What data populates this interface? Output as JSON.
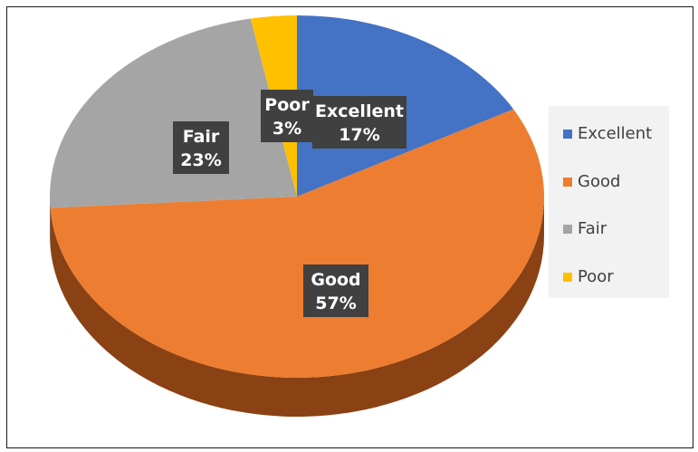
{
  "chart_data": {
    "type": "pie",
    "title": "",
    "style": "3d",
    "legend_position": "right",
    "slices": [
      {
        "label": "Excellent",
        "value": 17,
        "percent_label": "17%",
        "color": "#4472c4",
        "side_color": "#2f528f"
      },
      {
        "label": "Good",
        "value": 57,
        "percent_label": "57%",
        "color": "#ed7d31",
        "side_color": "#8a4214"
      },
      {
        "label": "Fair",
        "value": 23,
        "percent_label": "23%",
        "color": "#a5a5a5",
        "side_color": "#6e6e6e"
      },
      {
        "label": "Poor",
        "value": 3,
        "percent_label": "3%",
        "color": "#ffc000",
        "side_color": "#b38600"
      }
    ],
    "data_label_style": {
      "background": "#404040",
      "text_color": "#ffffff"
    }
  }
}
